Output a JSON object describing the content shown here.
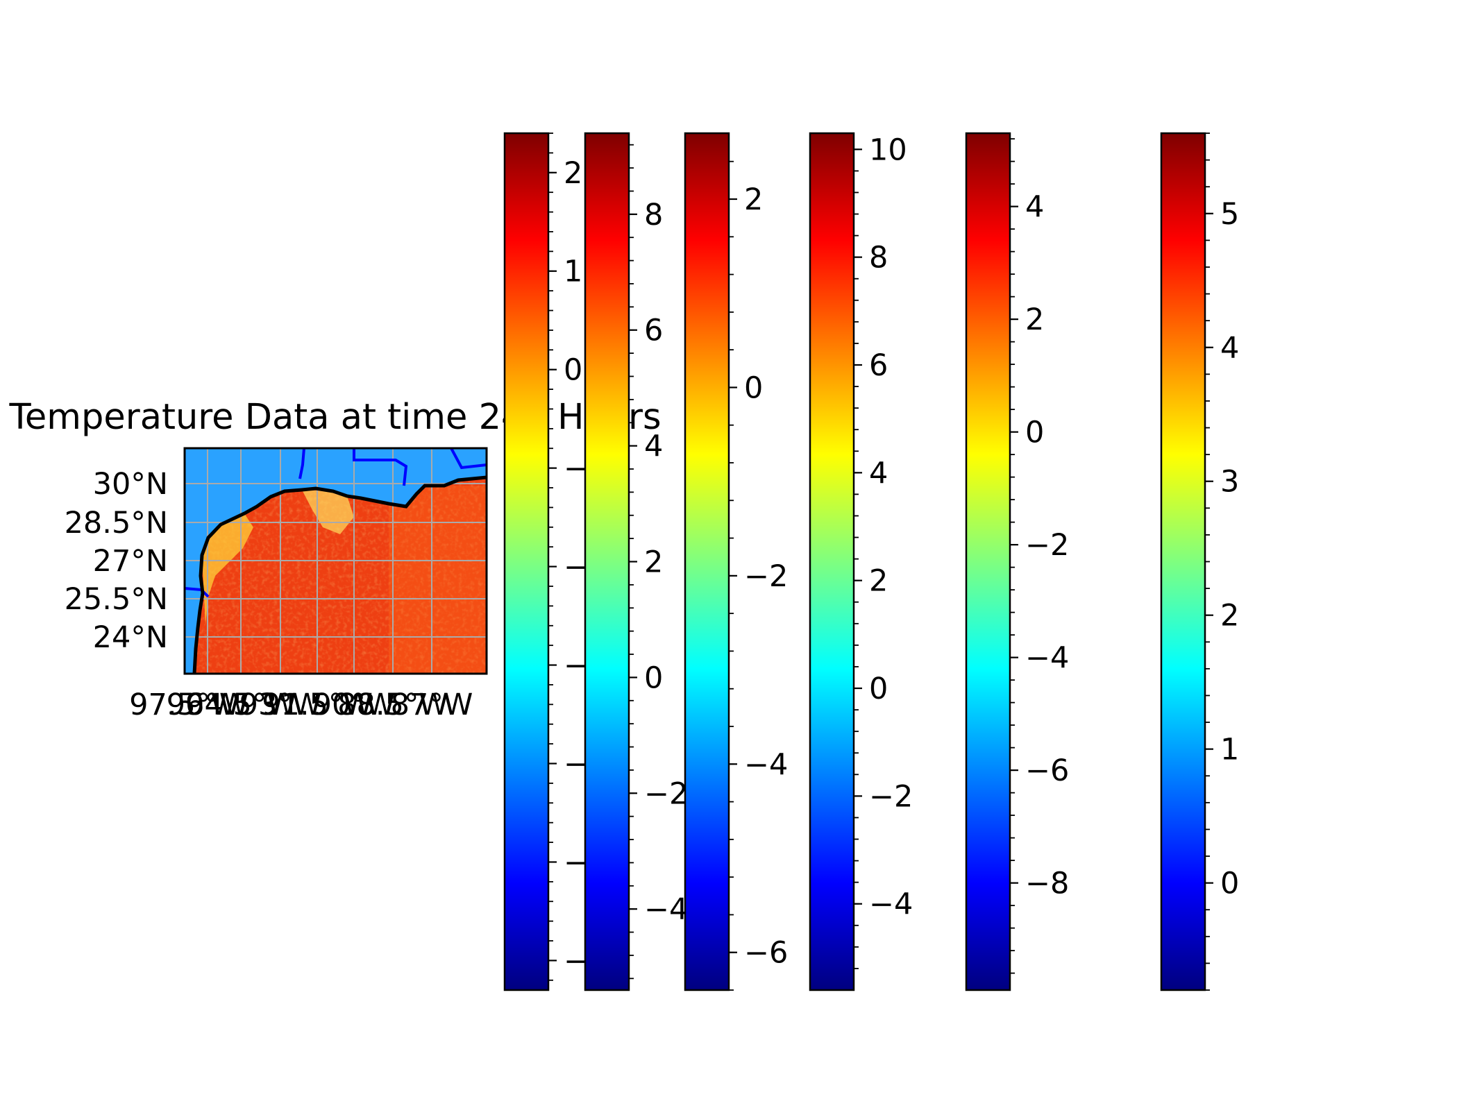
{
  "chart_data": {
    "type": "heatmap",
    "title": "Temperature Data at time 240 Hours",
    "colormap": "jet",
    "colormap_stops": [
      "#00007f",
      "#0000ff",
      "#007fff",
      "#00ffff",
      "#7fff7f",
      "#ffff00",
      "#ff7f00",
      "#ff0000",
      "#7f0000"
    ],
    "map": {
      "lat_labels": [
        "30°N",
        "28.5°N",
        "27°N",
        "25.5°N",
        "24°N"
      ],
      "lon_labels": [
        "97.5°W",
        "96°W",
        "94.5°W",
        "93°W",
        "91.5°W",
        "90°W",
        "88.5°W",
        "87°W"
      ],
      "coastline_color": "#000000",
      "border_color": "#0000ff",
      "gridline_color": "#aaaaaa",
      "sea_color": "#ee3f12",
      "land_color": "#2aa2ff"
    },
    "colorbars": [
      {
        "name": "colorbar-1",
        "range": [
          -6.3,
          2.4
        ],
        "ticks": [
          -6,
          -5,
          -4,
          -3,
          -2,
          -1,
          0,
          1,
          2
        ]
      },
      {
        "name": "colorbar-2",
        "range": [
          -5.4,
          9.4
        ],
        "ticks": [
          -4,
          -2,
          0,
          2,
          4,
          6,
          8
        ]
      },
      {
        "name": "colorbar-3",
        "range": [
          -6.4,
          2.7
        ],
        "ticks": [
          -6,
          -4,
          -2,
          0,
          2
        ]
      },
      {
        "name": "colorbar-4",
        "range": [
          -5.6,
          10.3
        ],
        "ticks": [
          -4,
          -2,
          0,
          2,
          4,
          6,
          8,
          10
        ]
      },
      {
        "name": "colorbar-5",
        "range": [
          -9.9,
          5.3
        ],
        "ticks": [
          -8,
          -6,
          -4,
          -2,
          0,
          2,
          4
        ]
      },
      {
        "name": "colorbar-6",
        "range": [
          -0.8,
          5.6
        ],
        "ticks": [
          0,
          1,
          2,
          3,
          4,
          5
        ]
      }
    ]
  }
}
